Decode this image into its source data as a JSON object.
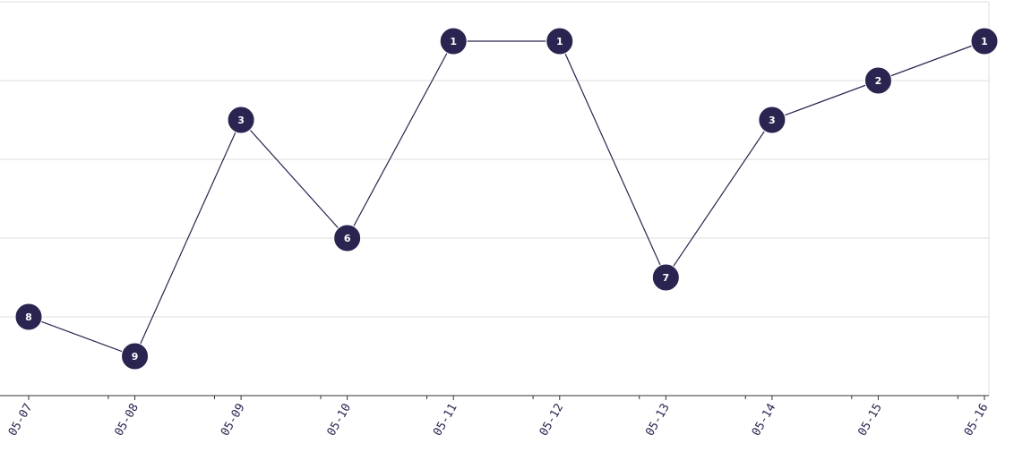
{
  "chart_data": {
    "type": "line",
    "title": "",
    "xlabel": "",
    "ylabel": "",
    "ylim": [
      0,
      10
    ],
    "y_inverted": true,
    "y_axis_labels_shown": false,
    "grid": true,
    "categories": [
      "05-07",
      "05-08",
      "05-09",
      "05-10",
      "05-11",
      "05-12",
      "05-13",
      "05-14",
      "05-15",
      "05-16"
    ],
    "series": [
      {
        "values": [
          8,
          9,
          3,
          6,
          1,
          1,
          7,
          3,
          2,
          1
        ]
      }
    ],
    "colors": {
      "series": "#2a2450",
      "point_text": "#ffffff",
      "grid": "#dcdcdc",
      "axis": "#333333"
    }
  }
}
